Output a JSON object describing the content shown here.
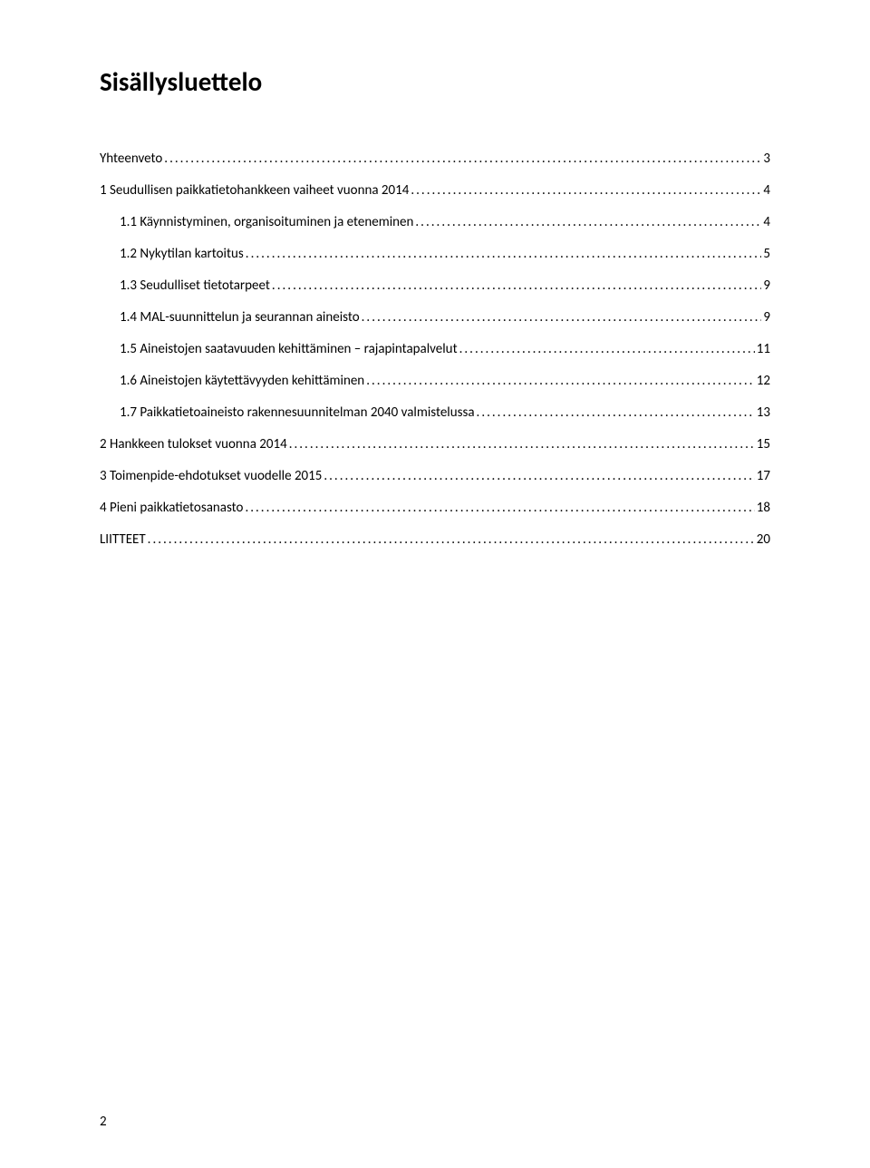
{
  "title": "Sisällysluettelo",
  "page_number": "2",
  "toc": [
    {
      "label": "Yhteenveto",
      "page": "3",
      "indent": 0
    },
    {
      "label": "1 Seudullisen paikkatietohankkeen vaiheet vuonna 2014",
      "page": "4",
      "indent": 0
    },
    {
      "label": "1.1    Käynnistyminen, organisoituminen ja eteneminen",
      "page": "4",
      "indent": 1
    },
    {
      "label": "1.2 Nykytilan kartoitus",
      "page": "5",
      "indent": 1
    },
    {
      "label": "1.3 Seudulliset tietotarpeet",
      "page": "9",
      "indent": 1
    },
    {
      "label": "1.4 MAL-suunnittelun ja seurannan aineisto",
      "page": "9",
      "indent": 1
    },
    {
      "label": "1.5 Aineistojen saatavuuden kehittäminen – rajapintapalvelut",
      "page": "11",
      "indent": 1
    },
    {
      "label": "1.6 Aineistojen käytettävyyden kehittäminen",
      "page": "12",
      "indent": 1
    },
    {
      "label": "1.7 Paikkatietoaineisto rakennesuunnitelman 2040 valmistelussa",
      "page": "13",
      "indent": 1
    },
    {
      "label": "2 Hankkeen tulokset vuonna 2014",
      "page": "15",
      "indent": 0
    },
    {
      "label": "3 Toimenpide-ehdotukset vuodelle 2015",
      "page": "17",
      "indent": 0
    },
    {
      "label": "4 Pieni paikkatietosanasto",
      "page": "18",
      "indent": 0
    },
    {
      "label": "LIITTEET",
      "page": "20",
      "indent": 0
    }
  ]
}
